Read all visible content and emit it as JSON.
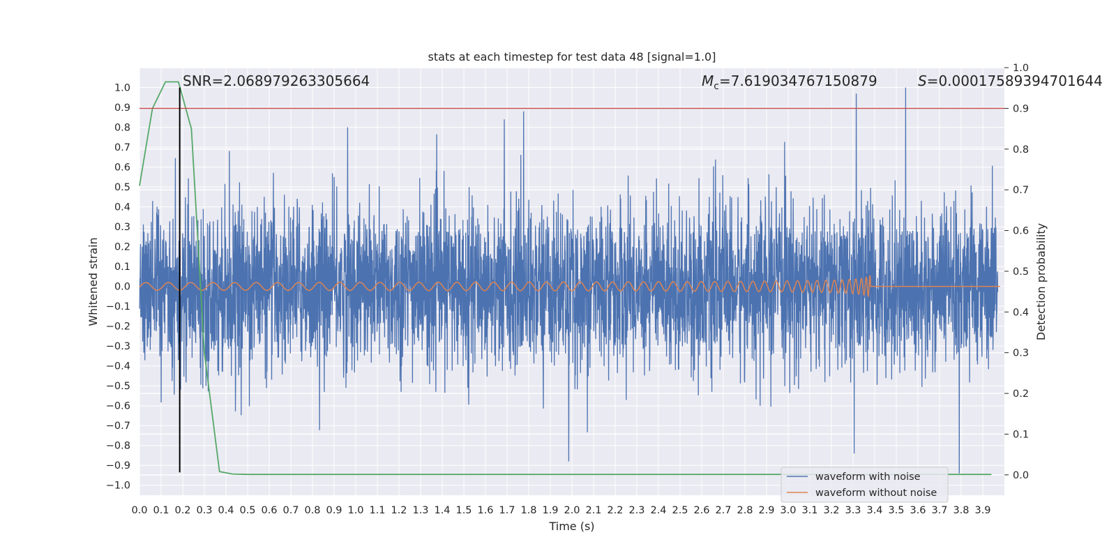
{
  "chart_data": {
    "type": "line",
    "title": "stats at each timestep for test data 48 [signal=1.0]",
    "xlabel": "Time (s)",
    "ylabel": "Whitened strain",
    "y2label": "Detection probability",
    "xlim": [
      0.0,
      4.0
    ],
    "ylim": [
      -1.05,
      1.1
    ],
    "y2lim": [
      -0.05,
      1.0
    ],
    "x_ticks": [
      "0.0",
      "0.1",
      "0.2",
      "0.3",
      "0.4",
      "0.5",
      "0.6",
      "0.7",
      "0.8",
      "0.9",
      "1.0",
      "1.1",
      "1.2",
      "1.3",
      "1.4",
      "1.5",
      "1.6",
      "1.7",
      "1.8",
      "1.9",
      "2.0",
      "2.1",
      "2.2",
      "2.3",
      "2.4",
      "2.5",
      "2.6",
      "2.7",
      "2.8",
      "2.9",
      "3.0",
      "3.1",
      "3.2",
      "3.3",
      "3.4",
      "3.5",
      "3.6",
      "3.7",
      "3.8",
      "3.9"
    ],
    "y_ticks": [
      "1.0",
      "0.9",
      "0.8",
      "0.7",
      "0.6",
      "0.5",
      "0.4",
      "0.3",
      "0.2",
      "0.1",
      "0.0",
      "−0.1",
      "−0.2",
      "−0.3",
      "−0.4",
      "−0.5",
      "−0.6",
      "−0.7",
      "−0.8",
      "−0.9",
      "−1.0"
    ],
    "y2_ticks": [
      "1.0",
      "0.9",
      "0.8",
      "0.7",
      "0.6",
      "0.5",
      "0.4",
      "0.3",
      "0.2",
      "0.1",
      "0.0"
    ],
    "grid": true,
    "legend_position": "lower-right",
    "series": [
      {
        "name": "waveform with noise",
        "axis": "left",
        "color": "#4c72b0",
        "style": "dense noisy strain, amplitude mostly within ±0.5",
        "sample_count": 4000,
        "peaks": [
          {
            "x": 3.57,
            "y": 1.0
          },
          {
            "x": 3.34,
            "y": 0.97
          },
          {
            "x": 1.79,
            "y": 0.88
          },
          {
            "x": 1.7,
            "y": 0.84
          },
          {
            "x": 0.97,
            "y": 0.8
          },
          {
            "x": 3.82,
            "y": -0.94
          },
          {
            "x": 2.0,
            "y": -0.88
          },
          {
            "x": 3.33,
            "y": -0.84
          }
        ]
      },
      {
        "name": "waveform without noise",
        "axis": "left",
        "color": "#dd8452",
        "style": "chirp: oscillation growing in frequency and amplitude, merger then flat",
        "merger_time": 3.38,
        "peak_amplitude": 0.055
      },
      {
        "name": "detection probability",
        "axis": "right",
        "color": "#55a868",
        "x": [
          0.0,
          0.06,
          0.12,
          0.18,
          0.24,
          0.3,
          0.37,
          0.43,
          0.5,
          0.6,
          1.0,
          2.0,
          3.0,
          3.94
        ],
        "values": [
          0.71,
          0.9,
          0.965,
          0.965,
          0.85,
          0.3,
          0.008,
          0.002,
          0.001,
          0.001,
          0.001,
          0.001,
          0.001,
          0.001
        ]
      }
    ],
    "reference_lines": [
      {
        "orientation": "horizontal",
        "axis": "right",
        "value": 0.9,
        "color": "#c44e52"
      },
      {
        "orientation": "vertical",
        "value": 0.186,
        "color": "#000000",
        "y_from": -0.935,
        "y_to": 1.0
      }
    ],
    "annotations": [
      {
        "text": "SNR=2.068979263305664"
      },
      {
        "text": "M_c=7.619034767150879",
        "symbol": "M",
        "subscript": "c",
        "rest": "=7.619034767150879"
      },
      {
        "text": "S=0.00017589394701644",
        "symbol": "S",
        "rest": "=0.00017589394701644"
      }
    ]
  }
}
